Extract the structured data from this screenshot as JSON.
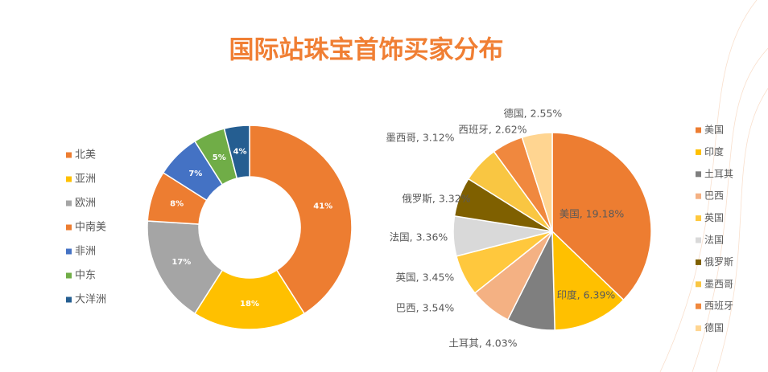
{
  "title": "国际站珠宝首饰买家分布",
  "chart_data": [
    {
      "type": "donut",
      "categories": [
        "北美",
        "亚洲",
        "欧洲",
        "中南美",
        "非洲",
        "中东",
        "大洋洲"
      ],
      "values": [
        41,
        18,
        17,
        8,
        7,
        5,
        4
      ],
      "value_labels": [
        "41%",
        "18%",
        "17%",
        "8%",
        "7%",
        "5%",
        "4%"
      ],
      "colors": [
        "#ED7D31",
        "#FFC000",
        "#A5A5A5",
        "#ED7D31",
        "#4472C4",
        "#70AD47",
        "#255E91"
      ],
      "legend": "left"
    },
    {
      "type": "pie",
      "categories": [
        "美国",
        "印度",
        "土耳其",
        "巴西",
        "英国",
        "法国",
        "俄罗斯",
        "墨西哥",
        "西班牙",
        "德国"
      ],
      "values": [
        19.18,
        6.39,
        4.03,
        3.54,
        3.45,
        3.36,
        3.32,
        3.12,
        2.62,
        2.55
      ],
      "value_labels": [
        "美国, 19.18%",
        "印度, 6.39%",
        "土耳其, 4.03%",
        "巴西, 3.54%",
        "英国, 3.45%",
        "法国, 3.36%",
        "俄罗斯, 3.32%",
        "墨西哥, 3.12%",
        "西班牙, 2.62%",
        "德国, 2.55%"
      ],
      "colors": [
        "#ED7D31",
        "#FFC000",
        "#7F7F7F",
        "#F4B183",
        "#FFC83D",
        "#D9D9D9",
        "#7F6000",
        "#F9C642",
        "#F0883E",
        "#FFD591"
      ],
      "legend": "right"
    }
  ]
}
